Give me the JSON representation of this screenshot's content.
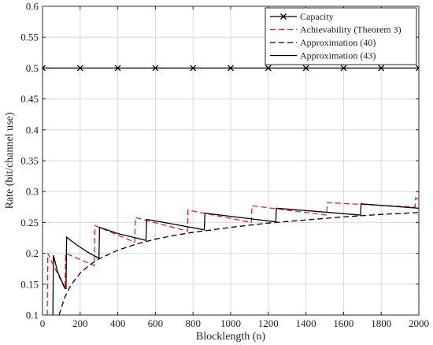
{
  "chart_data": {
    "type": "line",
    "title": "",
    "xlabel": "Blocklength (n)",
    "ylabel": "Rate (bit/channel use)",
    "xlim": [
      0,
      2000
    ],
    "ylim": [
      0.1,
      0.6
    ],
    "xticks": [
      0,
      200,
      400,
      600,
      800,
      1000,
      1200,
      1400,
      1600,
      1800,
      2000
    ],
    "yticks": [
      0.1,
      0.15,
      0.2,
      0.25,
      0.3,
      0.35,
      0.4,
      0.45,
      0.5,
      0.55,
      0.6
    ],
    "grid": true,
    "legend_position": "top-right",
    "series": [
      {
        "name": "Capacity",
        "color": "#000000",
        "style": "solid",
        "marker": "x",
        "x": [
          0,
          200,
          400,
          600,
          800,
          1000,
          1200,
          1400,
          1600,
          1800,
          2000
        ],
        "y": [
          0.5,
          0.5,
          0.5,
          0.5,
          0.5,
          0.5,
          0.5,
          0.5,
          0.5,
          0.5,
          0.5
        ]
      },
      {
        "name": "Achievability (Theorem 3)",
        "color": "#e8201a",
        "style": "dashed",
        "marker": "none",
        "x": [
          25,
          28,
          28,
          120,
          123,
          123,
          275,
          278,
          278,
          490,
          493,
          493,
          770,
          773,
          773,
          1110,
          1113,
          1113,
          1510,
          1513,
          1513,
          1980,
          1983,
          1983,
          2000
        ],
        "y": [
          0.1,
          0.2,
          0.2,
          0.142,
          0.2,
          0.2,
          0.18,
          0.245,
          0.245,
          0.218,
          0.258,
          0.258,
          0.236,
          0.27,
          0.27,
          0.25,
          0.277,
          0.277,
          0.262,
          0.282,
          0.282,
          0.275,
          0.29,
          0.29,
          0.287
        ]
      },
      {
        "name": "Approximation (40)",
        "color": "#000000",
        "style": "dashed",
        "marker": "none",
        "x": [
          88,
          100,
          120,
          150,
          200,
          250,
          300,
          400,
          500,
          600,
          700,
          800,
          900,
          1000,
          1200,
          1400,
          1600,
          1800,
          2000
        ],
        "y": [
          0.1,
          0.112,
          0.13,
          0.148,
          0.168,
          0.181,
          0.191,
          0.205,
          0.215,
          0.223,
          0.229,
          0.234,
          0.238,
          0.242,
          0.249,
          0.254,
          0.259,
          0.263,
          0.266
        ]
      },
      {
        "name": "Approximation (43)",
        "color": "#000000",
        "style": "solid",
        "marker": "none",
        "x": [
          55,
          58,
          80,
          120,
          125,
          128,
          180,
          240,
          300,
          303,
          400,
          550,
          553,
          700,
          860,
          863,
          1050,
          1240,
          1243,
          1450,
          1690,
          1693,
          2000
        ],
        "y": [
          0.1,
          0.197,
          0.17,
          0.143,
          0.143,
          0.226,
          0.214,
          0.202,
          0.192,
          0.242,
          0.232,
          0.221,
          0.255,
          0.247,
          0.238,
          0.265,
          0.258,
          0.251,
          0.273,
          0.268,
          0.262,
          0.28,
          0.273
        ]
      }
    ]
  }
}
